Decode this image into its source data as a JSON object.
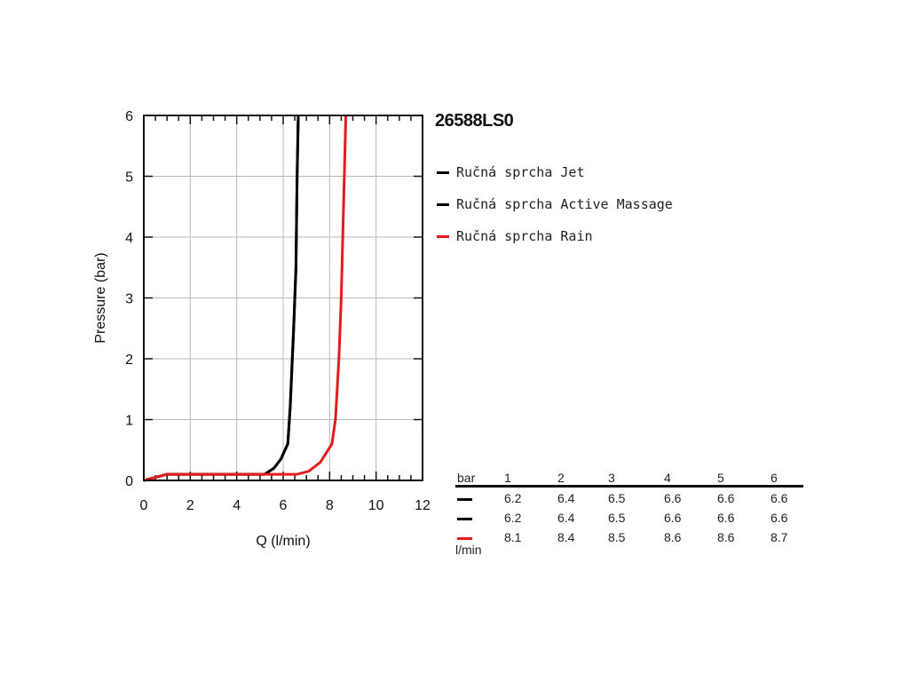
{
  "chart_data": {
    "type": "line",
    "title": "26588LS0",
    "xlabel": "Q (l/min)",
    "ylabel": "Pressure (bar)",
    "xlim": [
      0,
      12
    ],
    "ylim": [
      0,
      6
    ],
    "xticks": [
      0,
      2,
      4,
      6,
      8,
      10,
      12
    ],
    "yticks": [
      0,
      1,
      2,
      3,
      4,
      5,
      6
    ],
    "grid": true,
    "legend_position": "right",
    "series": [
      {
        "name": "Ručná sprcha Jet",
        "color": "#000000",
        "x": [
          0,
          0.5,
          1.0,
          2.0,
          4.0,
          5.2,
          5.6,
          5.9,
          6.2,
          6.3,
          6.45,
          6.55,
          6.6,
          6.65
        ],
        "y": [
          0,
          0.05,
          0.1,
          0.1,
          0.1,
          0.1,
          0.2,
          0.35,
          0.6,
          1.2,
          2.5,
          3.5,
          5.0,
          6.0
        ]
      },
      {
        "name": "Ručná sprcha Active Massage",
        "color": "#000000",
        "x": [
          0,
          0.5,
          1.0,
          2.0,
          4.0,
          5.2,
          5.6,
          5.9,
          6.2,
          6.3,
          6.45,
          6.55,
          6.6,
          6.65
        ],
        "y": [
          0,
          0.05,
          0.1,
          0.1,
          0.1,
          0.1,
          0.2,
          0.35,
          0.6,
          1.2,
          2.5,
          3.5,
          5.0,
          6.0
        ]
      },
      {
        "name": "Ručná sprcha Rain",
        "color": "#e41a1c",
        "x": [
          0,
          0.5,
          1.0,
          2.0,
          6.6,
          7.1,
          7.6,
          8.1,
          8.25,
          8.4,
          8.5,
          8.6,
          8.7
        ],
        "y": [
          0,
          0.05,
          0.1,
          0.1,
          0.1,
          0.15,
          0.3,
          0.6,
          1.0,
          2.0,
          3.0,
          4.5,
          6.0
        ]
      }
    ],
    "table": {
      "header_label": "bar",
      "unit_label": "l/min",
      "columns": [
        "1",
        "2",
        "3",
        "4",
        "5",
        "6"
      ],
      "rows": [
        {
          "color": "#000000",
          "values": [
            "6.2",
            "6.4",
            "6.5",
            "6.6",
            "6.6",
            "6.6"
          ]
        },
        {
          "color": "#000000",
          "values": [
            "6.2",
            "6.4",
            "6.5",
            "6.6",
            "6.6",
            "6.6"
          ]
        },
        {
          "color": "#e41a1c",
          "values": [
            "8.1",
            "8.4",
            "8.5",
            "8.6",
            "8.6",
            "8.7"
          ]
        }
      ]
    }
  }
}
